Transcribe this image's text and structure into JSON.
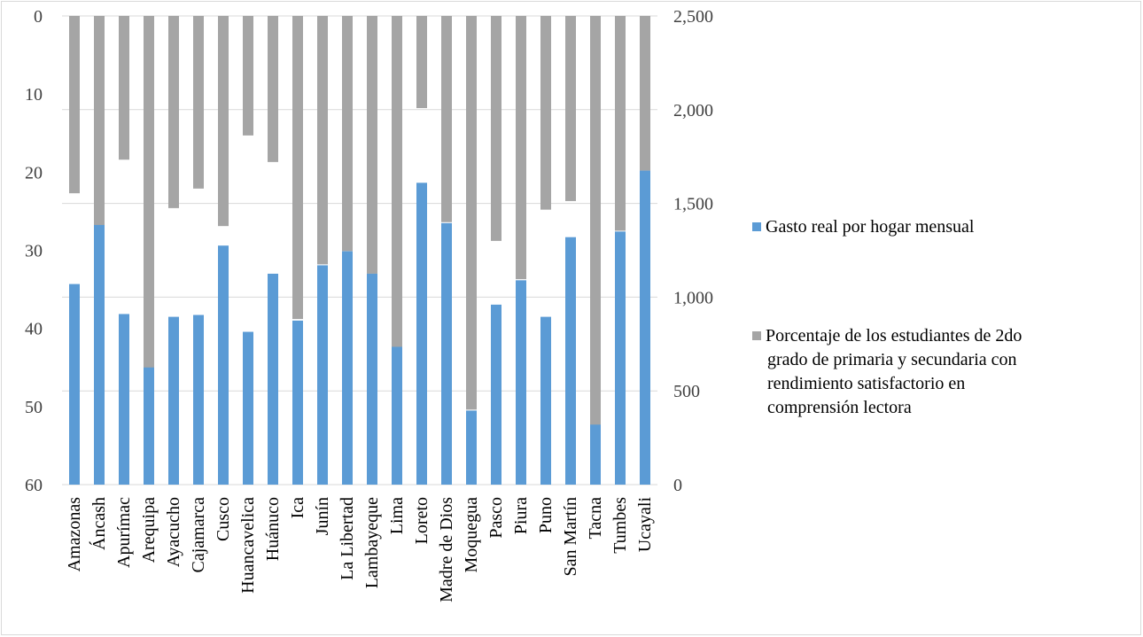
{
  "chart_data": {
    "type": "bar",
    "categories": [
      "Amazonas",
      "Áncash",
      "Apurímac",
      "Arequipa",
      "Ayacucho",
      "Cajamarca",
      "Cusco",
      "Huancavelica",
      "Huánuco",
      "Ica",
      "Junín",
      "La Libertad",
      "Lambayeque",
      "Lima",
      "Loreto",
      "Madre de Dios",
      "Moquegua",
      "Pasco",
      "Piura",
      "Puno",
      "San Martín",
      "Tacna",
      "Tumbes",
      "Ucayali"
    ],
    "series": [
      {
        "name": "Gasto real por hogar mensual",
        "axis": "right",
        "color": "#5b9bd5",
        "values": [
          1070,
          1385,
          910,
          625,
          895,
          905,
          1275,
          815,
          1125,
          875,
          1170,
          1245,
          1125,
          735,
          1610,
          1395,
          395,
          960,
          1090,
          895,
          1320,
          320,
          1350,
          1675
        ]
      },
      {
        "name": "Porcentaje de los estudiantes de 2do grado de primaria y secundaria con rendimiento satisfactorio en comprensión lectora",
        "axis": "left_inverted",
        "color": "#a5a5a5",
        "values": [
          22.7,
          26.8,
          18.4,
          45.4,
          24.6,
          22.1,
          26.9,
          15.3,
          18.7,
          38.8,
          31.8,
          30.1,
          33.0,
          42.5,
          11.8,
          26.4,
          50.4,
          28.8,
          33.7,
          24.8,
          23.7,
          52.7,
          27.5,
          19.8
        ]
      }
    ],
    "left_axis": {
      "min": 0,
      "max": 60,
      "inverted": true,
      "ticks": [
        "0",
        "10",
        "20",
        "30",
        "40",
        "50",
        "60"
      ]
    },
    "right_axis": {
      "min": 0,
      "max": 2500,
      "ticks": [
        "0",
        "500",
        "1,000",
        "1,500",
        "2,000",
        "2,500"
      ]
    },
    "grid": true,
    "legend_position": "right",
    "title": "",
    "xlabel": "",
    "ylabel": ""
  }
}
